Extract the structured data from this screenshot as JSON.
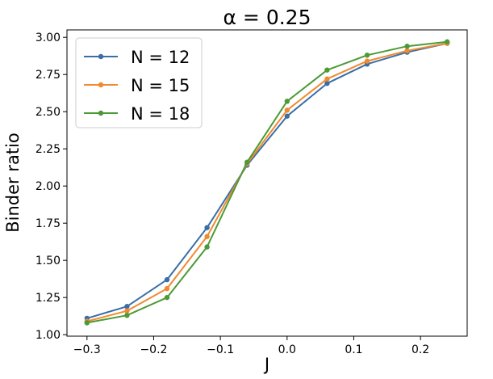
{
  "chart_data": {
    "type": "line",
    "title": "α = 0.25",
    "xlabel": "J",
    "ylabel": "Binder ratio",
    "xlim": [
      -0.33,
      0.27
    ],
    "ylim": [
      0.99,
      3.05
    ],
    "x": [
      -0.3,
      -0.24,
      -0.18,
      -0.12,
      -0.06,
      0.0,
      0.06,
      0.12,
      0.18,
      0.24
    ],
    "xticks": [
      -0.3,
      -0.2,
      -0.1,
      0.0,
      0.1,
      0.2
    ],
    "xtick_labels": [
      "−0.3",
      "−0.2",
      "−0.1",
      "0.0",
      "0.1",
      "0.2"
    ],
    "yticks": [
      1.0,
      1.25,
      1.5,
      1.75,
      2.0,
      2.25,
      2.5,
      2.75,
      3.0
    ],
    "ytick_labels": [
      "1.00",
      "1.25",
      "1.50",
      "1.75",
      "2.00",
      "2.25",
      "2.50",
      "2.75",
      "3.00"
    ],
    "grid": false,
    "legend_position": "top-left",
    "series": [
      {
        "name": "N = 12",
        "color": "#3b6ea5",
        "values": [
          1.11,
          1.19,
          1.37,
          1.72,
          2.14,
          2.47,
          2.69,
          2.82,
          2.9,
          2.96
        ]
      },
      {
        "name": "N = 15",
        "color": "#ef8a2f",
        "values": [
          1.09,
          1.16,
          1.31,
          1.66,
          2.15,
          2.51,
          2.72,
          2.84,
          2.91,
          2.96
        ]
      },
      {
        "name": "N = 18",
        "color": "#4c9a36",
        "values": [
          1.08,
          1.13,
          1.25,
          1.59,
          2.16,
          2.57,
          2.78,
          2.88,
          2.94,
          2.97
        ]
      }
    ]
  }
}
